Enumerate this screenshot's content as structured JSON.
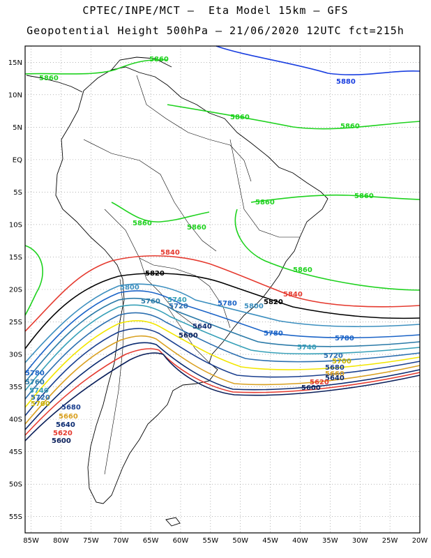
{
  "header": {
    "line1": "CPTEC/INPE/MCT –  Eta Model 15km – GFS",
    "line2": "Geopotential Height 500hPa – 21/06/2020 12UTC fct=215h"
  },
  "axes": {
    "lat_labels": [
      "15N",
      "10N",
      "5N",
      "EQ",
      "5S",
      "10S",
      "15S",
      "20S",
      "25S",
      "30S",
      "35S",
      "40S",
      "45S",
      "50S",
      "55S"
    ],
    "lon_labels": [
      "85W",
      "80W",
      "75W",
      "70W",
      "65W",
      "60W",
      "55W",
      "50W",
      "45W",
      "40W",
      "35W",
      "30W",
      "25W",
      "20W"
    ],
    "lat_range": [
      17.5,
      -57.5
    ],
    "lon_range": [
      -86,
      -20
    ]
  },
  "contours": [
    {
      "level": "5880",
      "color": "#1a3fe0"
    },
    {
      "level": "5860",
      "color": "#1ed21e"
    },
    {
      "level": "5840",
      "color": "#e53a2f"
    },
    {
      "level": "5820",
      "color": "#000000"
    },
    {
      "level": "5800",
      "color": "#3c8fbf"
    },
    {
      "level": "5780",
      "color": "#1a63c7"
    },
    {
      "level": "5760",
      "color": "#2a7aa8"
    },
    {
      "level": "5740",
      "color": "#37a0b8"
    },
    {
      "level": "5720",
      "color": "#2b6fb0"
    },
    {
      "level": "5700",
      "color": "#f2e600"
    },
    {
      "level": "5680",
      "color": "#1a3f8f"
    },
    {
      "level": "5660",
      "color": "#d9a020"
    },
    {
      "level": "5640",
      "color": "#0a2a70"
    },
    {
      "level": "5620",
      "color": "#e53a2f"
    },
    {
      "level": "5600",
      "color": "#0a1f5a"
    }
  ],
  "labels": [
    {
      "text": "5880",
      "color": "#1a3fe0"
    },
    {
      "text": "5860",
      "color": "#1ed21e"
    },
    {
      "text": "5840",
      "color": "#e53a2f"
    },
    {
      "text": "5820",
      "color": "#000000"
    },
    {
      "text": "5800",
      "color": "#3c8fbf"
    },
    {
      "text": "5780",
      "color": "#1a63c7"
    },
    {
      "text": "5760",
      "color": "#2a7aa8"
    },
    {
      "text": "5740",
      "color": "#37a0b8"
    },
    {
      "text": "5720",
      "color": "#2b6fb0"
    },
    {
      "text": "5700",
      "color": "#c8b400"
    },
    {
      "text": "5680",
      "color": "#1a3f8f"
    },
    {
      "text": "5660",
      "color": "#d9a020"
    },
    {
      "text": "5640",
      "color": "#0a2a70"
    },
    {
      "text": "5620",
      "color": "#e53a2f"
    },
    {
      "text": "5600",
      "color": "#0a1f5a"
    }
  ]
}
